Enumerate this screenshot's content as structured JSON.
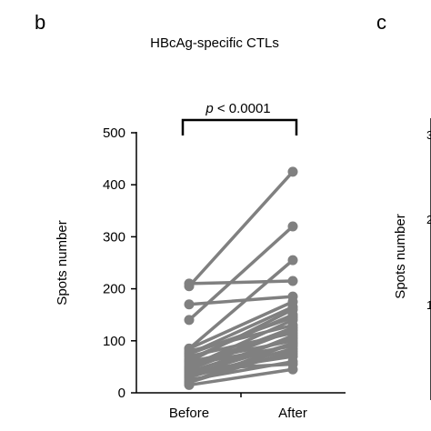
{
  "panels": {
    "b": "b",
    "c": "c"
  },
  "chart_data": {
    "type": "line",
    "title": "HBcAg-specific CTLs",
    "ylabel": "Spots number",
    "xlabel": "",
    "categories": [
      "Before",
      "After"
    ],
    "ylim": [
      0,
      500
    ],
    "yticks": [
      0,
      100,
      200,
      300,
      400,
      500
    ],
    "grid": false,
    "annotation": {
      "italic": "p",
      "rest": " < 0.0001"
    },
    "marker_color": "#808080",
    "pairs": [
      [
        205,
        425
      ],
      [
        140,
        320
      ],
      [
        85,
        255
      ],
      [
        210,
        215
      ],
      [
        170,
        185
      ],
      [
        75,
        165
      ],
      [
        50,
        140
      ],
      [
        60,
        160
      ],
      [
        45,
        120
      ],
      [
        30,
        110
      ],
      [
        35,
        95
      ],
      [
        20,
        80
      ],
      [
        40,
        105
      ],
      [
        65,
        150
      ],
      [
        80,
        130
      ],
      [
        25,
        60
      ],
      [
        15,
        45
      ],
      [
        55,
        90
      ],
      [
        70,
        115
      ],
      [
        60,
        100
      ],
      [
        40,
        70
      ],
      [
        50,
        125
      ],
      [
        30,
        85
      ],
      [
        75,
        145
      ],
      [
        45,
        55
      ],
      [
        20,
        95
      ],
      [
        85,
        175
      ],
      [
        35,
        75
      ]
    ]
  },
  "right_panel": {
    "ylabel": "Spots number",
    "tick_fragments": [
      "3",
      "2",
      "1"
    ]
  }
}
